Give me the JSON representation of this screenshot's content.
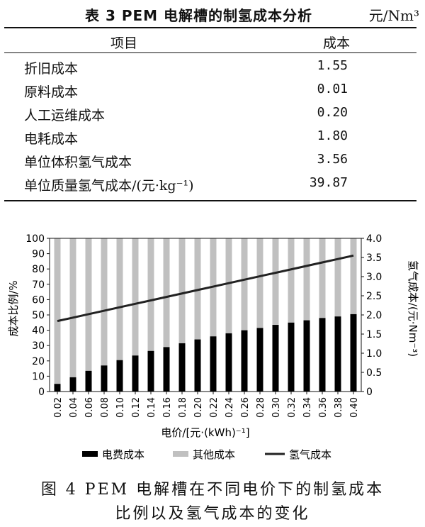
{
  "table": {
    "title": "表 3   PEM 电解槽的制氢成本分析",
    "unit": "元/Nm³",
    "header": {
      "item": "项目",
      "cost": "成本"
    },
    "rows": [
      {
        "item": "折旧成本",
        "value": "1.55"
      },
      {
        "item": "原料成本",
        "value": "0.01"
      },
      {
        "item": "人工运维成本",
        "value": "0.20"
      },
      {
        "item": "电耗成本",
        "value": "1.80"
      },
      {
        "item": "单位体积氢气成本",
        "value": "3.56"
      },
      {
        "item": "单位质量氢气成本/(元·kg⁻¹)",
        "value": "39.87"
      }
    ]
  },
  "chart_data": {
    "type": "bar",
    "stacked": true,
    "categories": [
      "0.02",
      "0.04",
      "0.06",
      "0.08",
      "0.10",
      "0.12",
      "0.14",
      "0.16",
      "0.18",
      "0.20",
      "0.22",
      "0.24",
      "0.26",
      "0.28",
      "0.30",
      "0.32",
      "0.34",
      "0.36",
      "0.38",
      "0.40"
    ],
    "series": [
      {
        "name": "电费成本",
        "axis": "left",
        "color": "#000000",
        "values": [
          5,
          9.3,
          13.5,
          17,
          20.5,
          23.5,
          26.5,
          29,
          31.5,
          34,
          36,
          38,
          40,
          41.5,
          43.5,
          45,
          46.5,
          48,
          49,
          50.5
        ]
      },
      {
        "name": "其他成本",
        "axis": "left",
        "color": "#c0c0c0",
        "values": [
          95,
          90.7,
          86.5,
          83,
          79.5,
          76.5,
          73.5,
          71,
          68.5,
          66,
          64,
          62,
          60,
          58.5,
          56.5,
          55,
          53.5,
          52,
          51,
          49.5
        ]
      },
      {
        "name": "氢气成本",
        "axis": "right",
        "type": "line",
        "color": "#222222",
        "values": [
          1.84,
          1.93,
          2.02,
          2.11,
          2.2,
          2.29,
          2.38,
          2.47,
          2.56,
          2.65,
          2.74,
          2.83,
          2.92,
          3.01,
          3.1,
          3.19,
          3.28,
          3.37,
          3.46,
          3.55
        ]
      }
    ],
    "xlabel": "电价/[元·(kWh)⁻¹]",
    "ylabel": "成本比例/%",
    "y2label": "氢气成本/(元·Nm⁻³)",
    "ylim": [
      0,
      100
    ],
    "y2lim": [
      0,
      4.0
    ],
    "yticks": [
      "0",
      "10",
      "20",
      "30",
      "40",
      "50",
      "60",
      "70",
      "80",
      "90",
      "100"
    ],
    "y2ticks": [
      "0",
      "0.5",
      "1.0",
      "1.5",
      "2.0",
      "2.5",
      "3.0",
      "3.5",
      "4.0"
    ],
    "legend_position": "bottom",
    "grid": false
  },
  "caption": {
    "line1": "图 4   PEM 电解槽在不同电价下的制氢成本",
    "line2": "比例以及氢气成本的变化"
  }
}
